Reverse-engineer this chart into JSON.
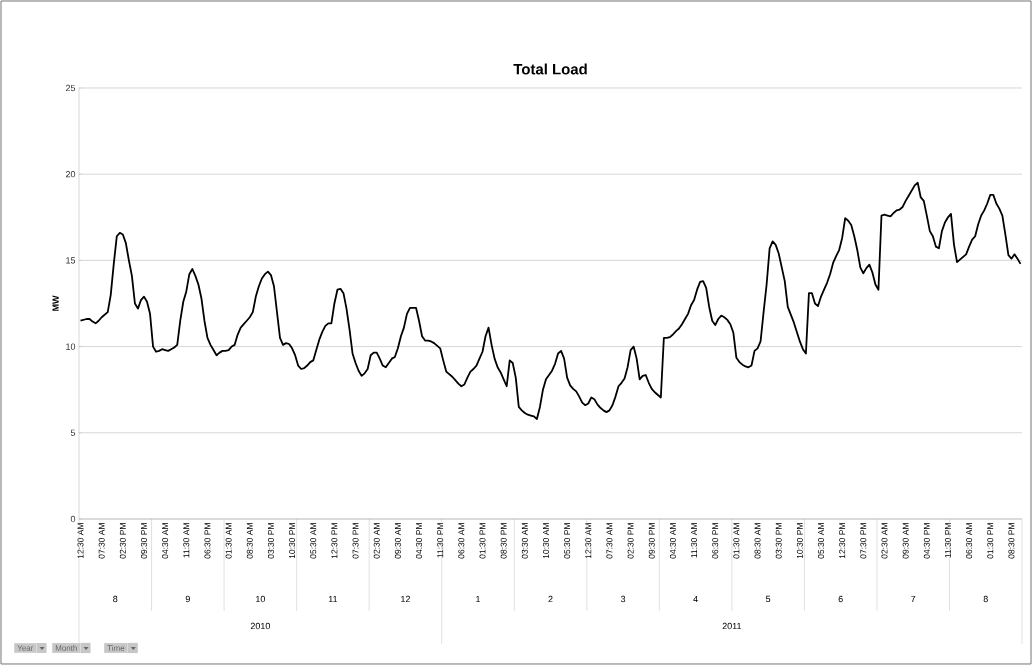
{
  "chart_data": {
    "type": "line",
    "title": "Total Load",
    "ylabel": "MW",
    "color": "#000000",
    "grid": "y",
    "ylim": [
      0,
      25
    ],
    "yticks": [
      0,
      5,
      10,
      15,
      20,
      25
    ],
    "categories": [
      "12:30 AM",
      null,
      null,
      null,
      null,
      null,
      null,
      "07:30 AM",
      null,
      null,
      null,
      null,
      null,
      null,
      "02:30 PM",
      null,
      null,
      null,
      null,
      null,
      null,
      "09:30 PM",
      null,
      null,
      null,
      null,
      null,
      null,
      "04:30 AM",
      null,
      null,
      null,
      null,
      null,
      null,
      "11:30 AM",
      null,
      null,
      null,
      null,
      null,
      null,
      "06:30 PM",
      null,
      null,
      null,
      null,
      null,
      null,
      "01:30 AM",
      null,
      null,
      null,
      null,
      null,
      null,
      "08:30 AM",
      null,
      null,
      null,
      null,
      null,
      null,
      "03:30 PM",
      null,
      null,
      null,
      null,
      null,
      null,
      "10:30 PM",
      null,
      null,
      null,
      null,
      null,
      null,
      "05:30 AM",
      null,
      null,
      null,
      null,
      null,
      null,
      "12:30 PM",
      null,
      null,
      null,
      null,
      null,
      null,
      "07:30 PM",
      null,
      null,
      null,
      null,
      null,
      null,
      "02:30 AM",
      null,
      null,
      null,
      null,
      null,
      null,
      "09:30 AM",
      null,
      null,
      null,
      null,
      null,
      null,
      "04:30 PM",
      null,
      null,
      null,
      null,
      null,
      null,
      "11:30 PM",
      null,
      null,
      null,
      null,
      null,
      null,
      "06:30 AM",
      null,
      null,
      null,
      null,
      null,
      null,
      "01:30 PM",
      null,
      null,
      null,
      null,
      null,
      null,
      "08:30 PM",
      null,
      null,
      null,
      null,
      null,
      null,
      "03:30 AM",
      null,
      null,
      null,
      null,
      null,
      null,
      "10:30 AM",
      null,
      null,
      null,
      null,
      null,
      null,
      "05:30 PM",
      null,
      null,
      null,
      null,
      null,
      null,
      "12:30 AM",
      null,
      null,
      null,
      null,
      null,
      null,
      "07:30 AM",
      null,
      null,
      null,
      null,
      null,
      null,
      "02:30 PM",
      null,
      null,
      null,
      null,
      null,
      null,
      "09:30 PM",
      null,
      null,
      null,
      null,
      null,
      null,
      "04:30 AM",
      null,
      null,
      null,
      null,
      null,
      null,
      "11:30 AM",
      null,
      null,
      null,
      null,
      null,
      null,
      "06:30 PM",
      null,
      null,
      null,
      null,
      null,
      null,
      "01:30 AM",
      null,
      null,
      null,
      null,
      null,
      null,
      "08:30 AM",
      null,
      null,
      null,
      null,
      null,
      null,
      "03:30 PM",
      null,
      null,
      null,
      null,
      null,
      null,
      "10:30 PM",
      null,
      null,
      null,
      null,
      null,
      null,
      "05:30 AM",
      null,
      null,
      null,
      null,
      null,
      null,
      "12:30 PM",
      null,
      null,
      null,
      null,
      null,
      null,
      "07:30 PM",
      null,
      null,
      null,
      null,
      null,
      null,
      "02:30 AM",
      null,
      null,
      null,
      null,
      null,
      null,
      "09:30 AM",
      null,
      null,
      null,
      null,
      null,
      null,
      "04:30 PM",
      null,
      null,
      null,
      null,
      null,
      null,
      "11:30 PM",
      null,
      null,
      null,
      null,
      null,
      null,
      "06:30 AM",
      null,
      null,
      null,
      null,
      null,
      null,
      "01:30 PM",
      null,
      null,
      null,
      null,
      null,
      null,
      "08:30 PM",
      null,
      null,
      null
    ],
    "values": [
      11.5,
      11.55,
      11.6,
      11.6,
      11.45,
      11.35,
      11.5,
      11.7,
      11.85,
      12.0,
      13.0,
      14.8,
      16.4,
      16.6,
      16.5,
      16.0,
      15.0,
      14.1,
      12.5,
      12.2,
      12.7,
      12.9,
      12.6,
      11.9,
      10.0,
      9.7,
      9.75,
      9.85,
      9.8,
      9.75,
      9.85,
      9.95,
      10.1,
      11.5,
      12.6,
      13.2,
      14.2,
      14.5,
      14.1,
      13.6,
      12.8,
      11.5,
      10.5,
      10.1,
      9.8,
      9.5,
      9.65,
      9.75,
      9.75,
      9.8,
      10.0,
      10.1,
      10.7,
      11.1,
      11.3,
      11.5,
      11.7,
      12.0,
      12.9,
      13.5,
      13.95,
      14.2,
      14.35,
      14.15,
      13.5,
      12.0,
      10.5,
      10.1,
      10.2,
      10.15,
      9.9,
      9.5,
      8.9,
      8.7,
      8.75,
      8.9,
      9.1,
      9.2,
      9.8,
      10.4,
      10.85,
      11.2,
      11.35,
      11.35,
      12.5,
      13.3,
      13.35,
      13.1,
      12.2,
      11.0,
      9.6,
      9.05,
      8.6,
      8.3,
      8.45,
      8.7,
      9.5,
      9.65,
      9.65,
      9.3,
      8.9,
      8.8,
      9.05,
      9.3,
      9.4,
      9.9,
      10.6,
      11.1,
      11.9,
      12.25,
      12.25,
      12.25,
      11.5,
      10.6,
      10.35,
      10.35,
      10.3,
      10.2,
      10.05,
      9.9,
      9.2,
      8.55,
      8.4,
      8.25,
      8.05,
      7.85,
      7.7,
      7.8,
      8.2,
      8.55,
      8.7,
      8.9,
      9.3,
      9.7,
      10.6,
      11.1,
      10.1,
      9.3,
      8.8,
      8.5,
      8.1,
      7.7,
      9.2,
      9.05,
      8.2,
      6.5,
      6.3,
      6.15,
      6.05,
      6.0,
      5.95,
      5.8,
      6.5,
      7.5,
      8.1,
      8.35,
      8.6,
      9.0,
      9.6,
      9.75,
      9.3,
      8.2,
      7.75,
      7.55,
      7.4,
      7.1,
      6.75,
      6.6,
      6.7,
      7.05,
      6.95,
      6.65,
      6.45,
      6.3,
      6.2,
      6.3,
      6.6,
      7.1,
      7.7,
      7.9,
      8.15,
      8.8,
      9.8,
      10.0,
      9.3,
      8.1,
      8.3,
      8.35,
      7.9,
      7.55,
      7.35,
      7.2,
      7.05,
      10.5,
      10.5,
      10.55,
      10.7,
      10.9,
      11.05,
      11.3,
      11.6,
      11.9,
      12.4,
      12.7,
      13.3,
      13.75,
      13.8,
      13.4,
      12.3,
      11.5,
      11.25,
      11.6,
      11.8,
      11.7,
      11.55,
      11.3,
      10.8,
      9.35,
      9.1,
      8.95,
      8.85,
      8.8,
      8.9,
      9.75,
      9.9,
      10.3,
      12.0,
      13.6,
      15.7,
      16.1,
      15.9,
      15.4,
      14.6,
      13.8,
      12.3,
      11.85,
      11.4,
      10.85,
      10.3,
      9.85,
      9.6,
      13.1,
      13.1,
      12.5,
      12.35,
      12.9,
      13.3,
      13.7,
      14.2,
      14.85,
      15.25,
      15.6,
      16.3,
      17.45,
      17.3,
      17.05,
      16.4,
      15.6,
      14.6,
      14.25,
      14.55,
      14.75,
      14.3,
      13.6,
      13.3,
      17.6,
      17.65,
      17.6,
      17.55,
      17.75,
      17.9,
      17.95,
      18.1,
      18.45,
      18.75,
      19.05,
      19.35,
      19.5,
      18.65,
      18.45,
      17.6,
      16.7,
      16.4,
      15.8,
      15.7,
      16.7,
      17.2,
      17.5,
      17.7,
      15.9,
      14.9,
      15.05,
      15.2,
      15.35,
      15.8,
      16.2,
      16.4,
      17.1,
      17.6,
      17.9,
      18.3,
      18.8,
      18.8,
      18.3,
      18.0,
      17.6,
      16.5,
      15.3,
      15.1,
      15.35,
      15.1,
      14.8
    ],
    "annotations": [
      "8",
      "9",
      "10",
      "11",
      "12",
      "1",
      "2",
      "3",
      "4",
      "5",
      "6",
      "7",
      "8",
      "2010",
      "2011",
      "Year",
      "Month",
      "Time"
    ]
  }
}
